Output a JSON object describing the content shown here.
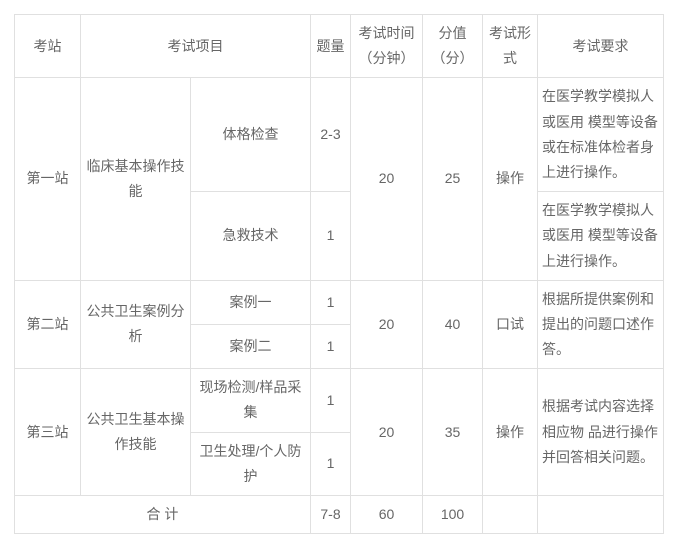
{
  "headers": {
    "station": "考站",
    "project": "考试项目",
    "qcount": "题量",
    "time": "考试时间（分钟）",
    "score": "分值（分）",
    "form": "考试形式",
    "req": "考试要求"
  },
  "rows": {
    "s1": {
      "station": "第一站",
      "project": "临床基本操作技能",
      "sub1": "体格检查",
      "sub1_qcount": "2-3",
      "sub2": "急救技术",
      "sub2_qcount": "1",
      "time": "20",
      "score": "25",
      "form": "操作",
      "req1": "在医学教学模拟人或医用 模型等设备或在标准体检者身上进行操作。",
      "req2": "在医学教学模拟人或医用 模型等设备上进行操作。"
    },
    "s2": {
      "station": "第二站",
      "project": "公共卫生案例分析",
      "sub1": "案例一",
      "sub1_qcount": "1",
      "sub2": "案例二",
      "sub2_qcount": "1",
      "time": "20",
      "score": "40",
      "form": "口试",
      "req": "根据所提供案例和提出的问题口述作答。"
    },
    "s3": {
      "station": "第三站",
      "project": "公共卫生基本操作技能",
      "sub1": "现场检测/样品采集",
      "sub1_qcount": "1",
      "sub2": "卫生处理/个人防护",
      "sub2_qcount": "1",
      "time": "20",
      "score": "35",
      "form": "操作",
      "req": "根据考试内容选择相应物 品进行操作并回答相关问题。"
    },
    "total": {
      "label": "合 计",
      "qcount": "7-8",
      "time": "60",
      "score": "100"
    }
  },
  "style": {
    "border_color": "#e0e0e0",
    "text_color": "#666666",
    "background": "#ffffff",
    "font_size": 14
  }
}
